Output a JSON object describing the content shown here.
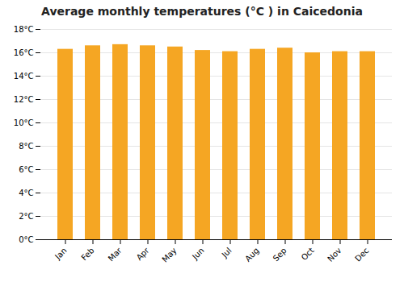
{
  "chart_data": {
    "type": "bar",
    "title": "Average monthly temperatures (°C ) in Caicedonia",
    "categories": [
      "Jan",
      "Feb",
      "Mar",
      "Apr",
      "May",
      "Jun",
      "Jul",
      "Aug",
      "Sep",
      "Oct",
      "Nov",
      "Dec"
    ],
    "values": [
      16.3,
      16.6,
      16.7,
      16.6,
      16.5,
      16.2,
      16.1,
      16.3,
      16.4,
      16.0,
      16.1,
      16.1
    ],
    "color": "#F5A623",
    "ylim": [
      0,
      18
    ],
    "yticks": [
      {
        "value": 0,
        "label": "0°C"
      },
      {
        "value": 2,
        "label": "2°C"
      },
      {
        "value": 4,
        "label": "4°C"
      },
      {
        "value": 6,
        "label": "6°C"
      },
      {
        "value": 8,
        "label": "8°C"
      },
      {
        "value": 10,
        "label": "10°C"
      },
      {
        "value": 12,
        "label": "12°C"
      },
      {
        "value": 14,
        "label": "14°C"
      },
      {
        "value": 16,
        "label": "16°C"
      },
      {
        "value": 18,
        "label": "18°C"
      }
    ],
    "grid": true
  }
}
